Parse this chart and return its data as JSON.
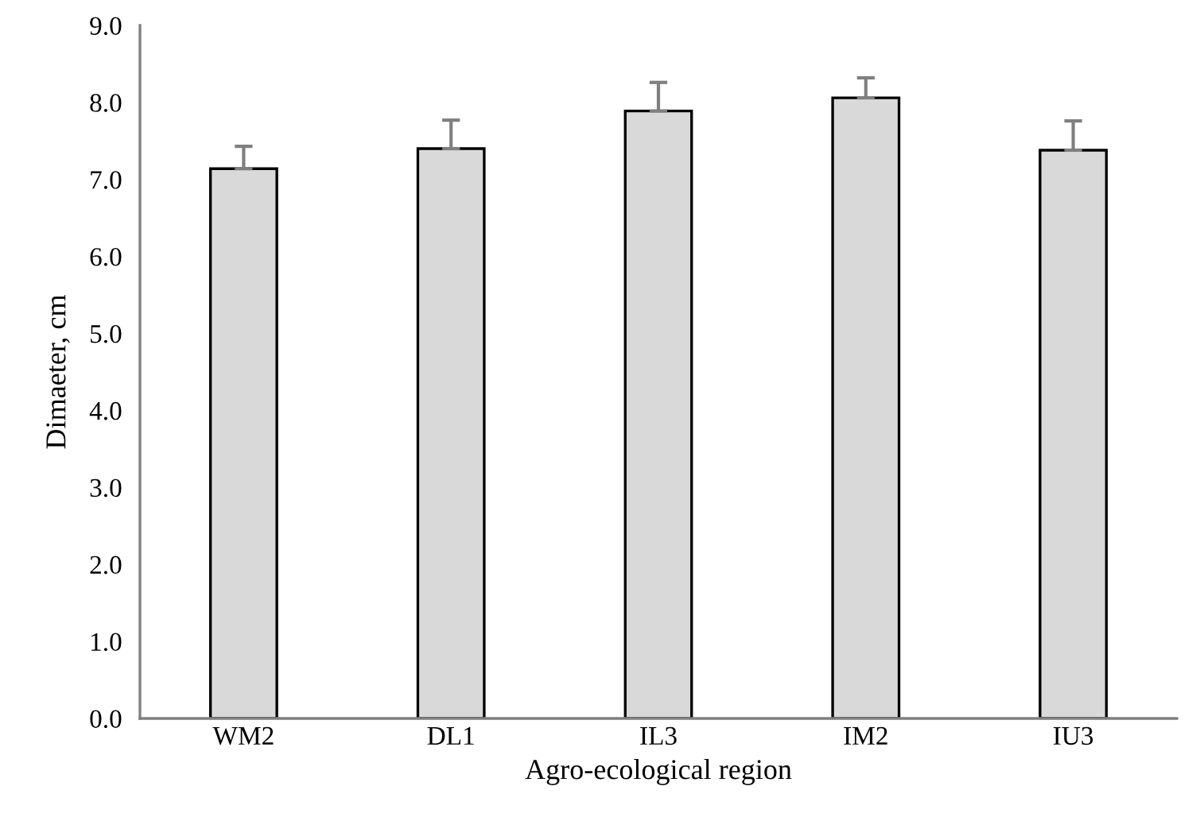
{
  "chart_data": {
    "type": "bar",
    "xlabel": "Agro-ecological region",
    "ylabel": "Dimaeter, cm",
    "categories": [
      "WM2",
      "DL1",
      "IL3",
      "IM2",
      "IU3"
    ],
    "values": [
      7.14,
      7.4,
      7.89,
      8.06,
      7.38
    ],
    "errors": [
      [
        7.14,
        7.43
      ],
      [
        7.4,
        7.77
      ],
      [
        7.89,
        8.26
      ],
      [
        8.06,
        8.32
      ],
      [
        7.38,
        7.76
      ]
    ],
    "color": "#d9d9d9",
    "ylim": [
      0,
      9
    ],
    "yticks": [
      {
        "value": 0,
        "label": "0.0"
      },
      {
        "value": 1,
        "label": "1.0"
      },
      {
        "value": 2,
        "label": "2.0"
      },
      {
        "value": 3,
        "label": "3.0"
      },
      {
        "value": 4,
        "label": "4.0"
      },
      {
        "value": 5,
        "label": "5.0"
      },
      {
        "value": 6,
        "label": "6.0"
      },
      {
        "value": 7,
        "label": "7.0"
      },
      {
        "value": 8,
        "label": "8.0"
      },
      {
        "value": 9,
        "label": "9.0"
      }
    ],
    "grid": false,
    "legend": false
  }
}
